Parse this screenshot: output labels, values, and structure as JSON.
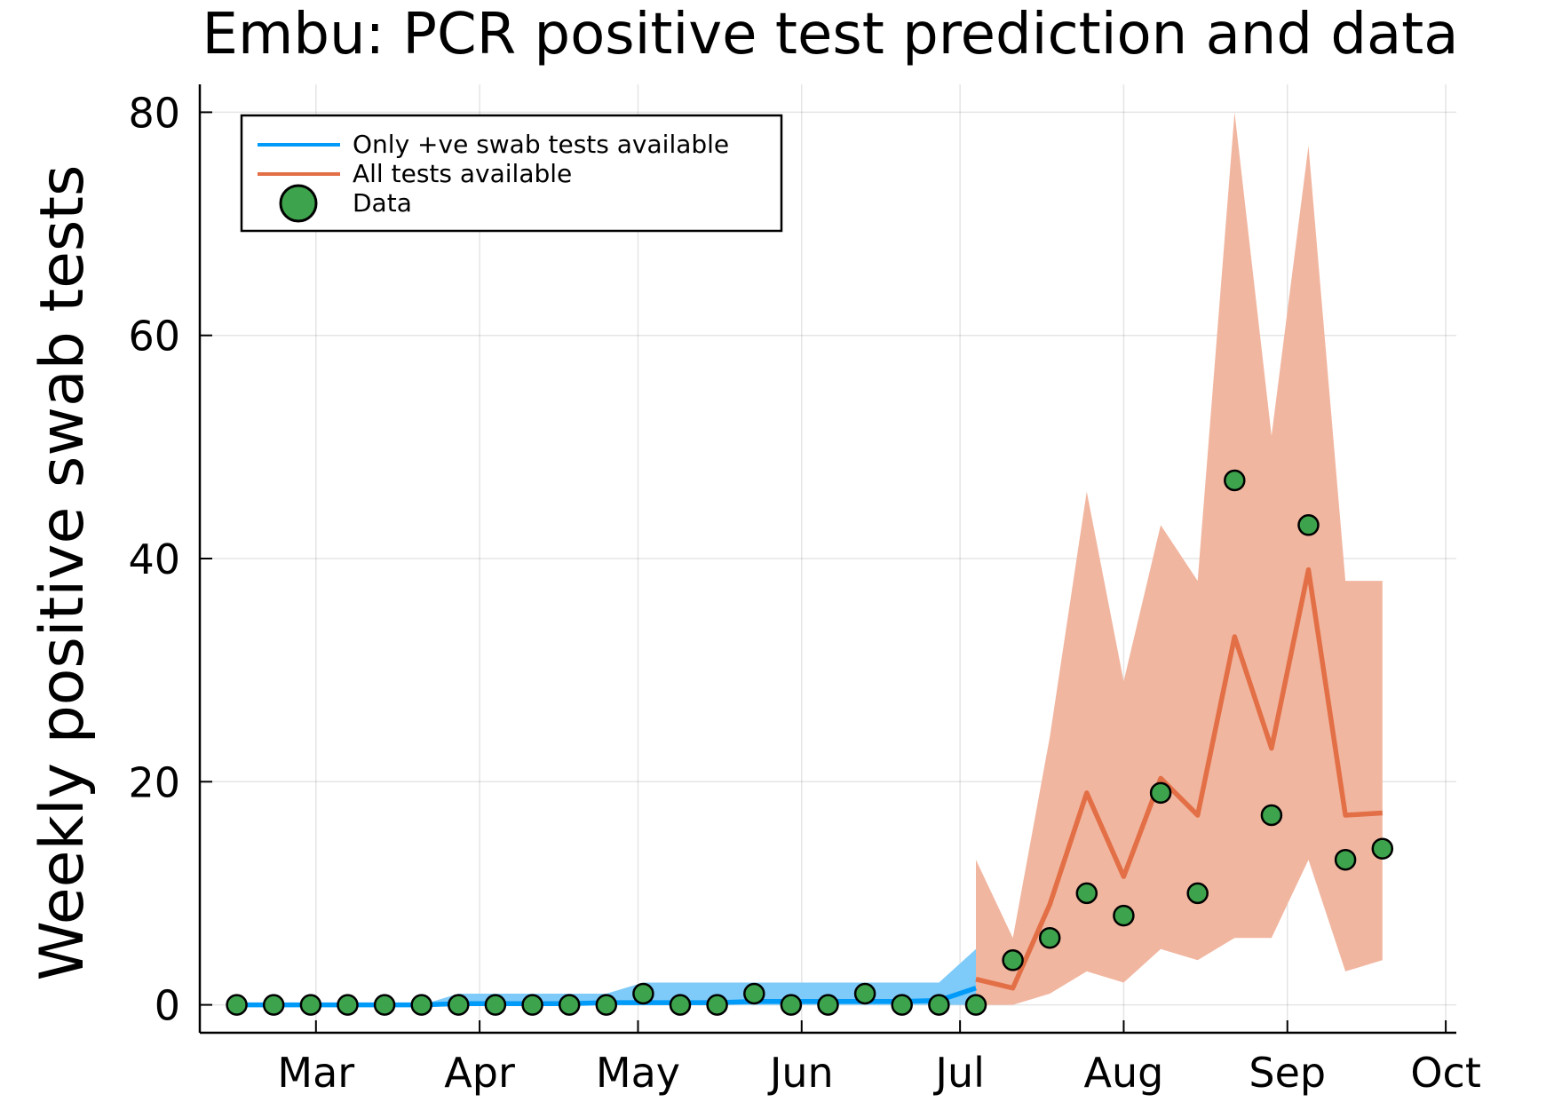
{
  "chart_data": {
    "type": "line",
    "title": "Embu: PCR positive test prediction and data",
    "xlabel": "",
    "ylabel": "Weekly positive swab tests",
    "ylim": [
      -2.5,
      82.5
    ],
    "xlim": [
      "2020-02-08",
      "2020-10-03"
    ],
    "x_ticks": [
      {
        "date": "2020-03-01",
        "label": "Mar"
      },
      {
        "date": "2020-04-01",
        "label": "Apr"
      },
      {
        "date": "2020-05-01",
        "label": "May"
      },
      {
        "date": "2020-06-01",
        "label": "Jun"
      },
      {
        "date": "2020-07-01",
        "label": "Jul"
      },
      {
        "date": "2020-08-01",
        "label": "Aug"
      },
      {
        "date": "2020-09-01",
        "label": "Sep"
      },
      {
        "date": "2020-10-01",
        "label": "Oct"
      }
    ],
    "y_ticks": [
      0,
      20,
      40,
      60,
      80
    ],
    "grid": true,
    "legend_position": "top-left",
    "series": [
      {
        "name": "Only +ve swab tests available",
        "kind": "line-with-band",
        "color": "#009af9",
        "band_color": "#7ecaf8",
        "x": [
          "2020-02-15",
          "2020-02-22",
          "2020-02-29",
          "2020-03-07",
          "2020-03-14",
          "2020-03-21",
          "2020-03-28",
          "2020-04-04",
          "2020-04-11",
          "2020-04-18",
          "2020-04-25",
          "2020-05-02",
          "2020-05-09",
          "2020-05-16",
          "2020-05-23",
          "2020-05-30",
          "2020-06-06",
          "2020-06-13",
          "2020-06-20",
          "2020-06-27",
          "2020-07-04"
        ],
        "y": [
          0,
          0,
          0,
          0,
          0,
          0,
          0.1,
          0.1,
          0.1,
          0.1,
          0.2,
          0.2,
          0.2,
          0.2,
          0.3,
          0.3,
          0.3,
          0.3,
          0.3,
          0.4,
          1.5
        ],
        "lower": [
          0,
          0,
          0,
          0,
          0,
          0,
          0,
          0,
          0,
          0,
          0,
          0,
          0,
          0,
          0,
          0,
          0,
          0,
          0,
          0,
          0
        ],
        "upper": [
          0,
          0,
          0,
          0,
          0,
          0,
          1,
          1,
          1,
          1,
          1,
          2,
          2,
          2,
          2,
          2,
          2,
          2,
          2,
          2,
          5
        ]
      },
      {
        "name": "All tests available",
        "kind": "line-with-band",
        "color": "#e26f46",
        "band_color": "#f1b6a0",
        "x": [
          "2020-07-04",
          "2020-07-11",
          "2020-07-18",
          "2020-07-25",
          "2020-08-01",
          "2020-08-08",
          "2020-08-15",
          "2020-08-22",
          "2020-08-29",
          "2020-09-05",
          "2020-09-12",
          "2020-09-19"
        ],
        "y": [
          2.3,
          1.5,
          9,
          19,
          11.5,
          20.3,
          17,
          33,
          23,
          39,
          17,
          17.2
        ],
        "lower": [
          0,
          0,
          1,
          3,
          2,
          5,
          4,
          6,
          6,
          13,
          3,
          4
        ],
        "upper": [
          13,
          6,
          24,
          46,
          29,
          43,
          38,
          80,
          51,
          77,
          38,
          38
        ]
      },
      {
        "name": "Data",
        "kind": "scatter",
        "color": "#3da44d",
        "x": [
          "2020-02-15",
          "2020-02-22",
          "2020-02-29",
          "2020-03-07",
          "2020-03-14",
          "2020-03-21",
          "2020-03-28",
          "2020-04-04",
          "2020-04-11",
          "2020-04-18",
          "2020-04-25",
          "2020-05-02",
          "2020-05-09",
          "2020-05-16",
          "2020-05-23",
          "2020-05-30",
          "2020-06-06",
          "2020-06-13",
          "2020-06-20",
          "2020-06-27",
          "2020-07-04",
          "2020-07-11",
          "2020-07-18",
          "2020-07-25",
          "2020-08-01",
          "2020-08-08",
          "2020-08-15",
          "2020-08-22",
          "2020-08-29",
          "2020-09-05",
          "2020-09-12",
          "2020-09-19"
        ],
        "y": [
          0,
          0,
          0,
          0,
          0,
          0,
          0,
          0,
          0,
          0,
          0,
          1,
          0,
          0,
          1,
          0,
          0,
          1,
          0,
          0,
          0,
          4,
          6,
          10,
          8,
          19,
          10,
          47,
          17,
          43,
          13,
          14
        ]
      }
    ]
  }
}
